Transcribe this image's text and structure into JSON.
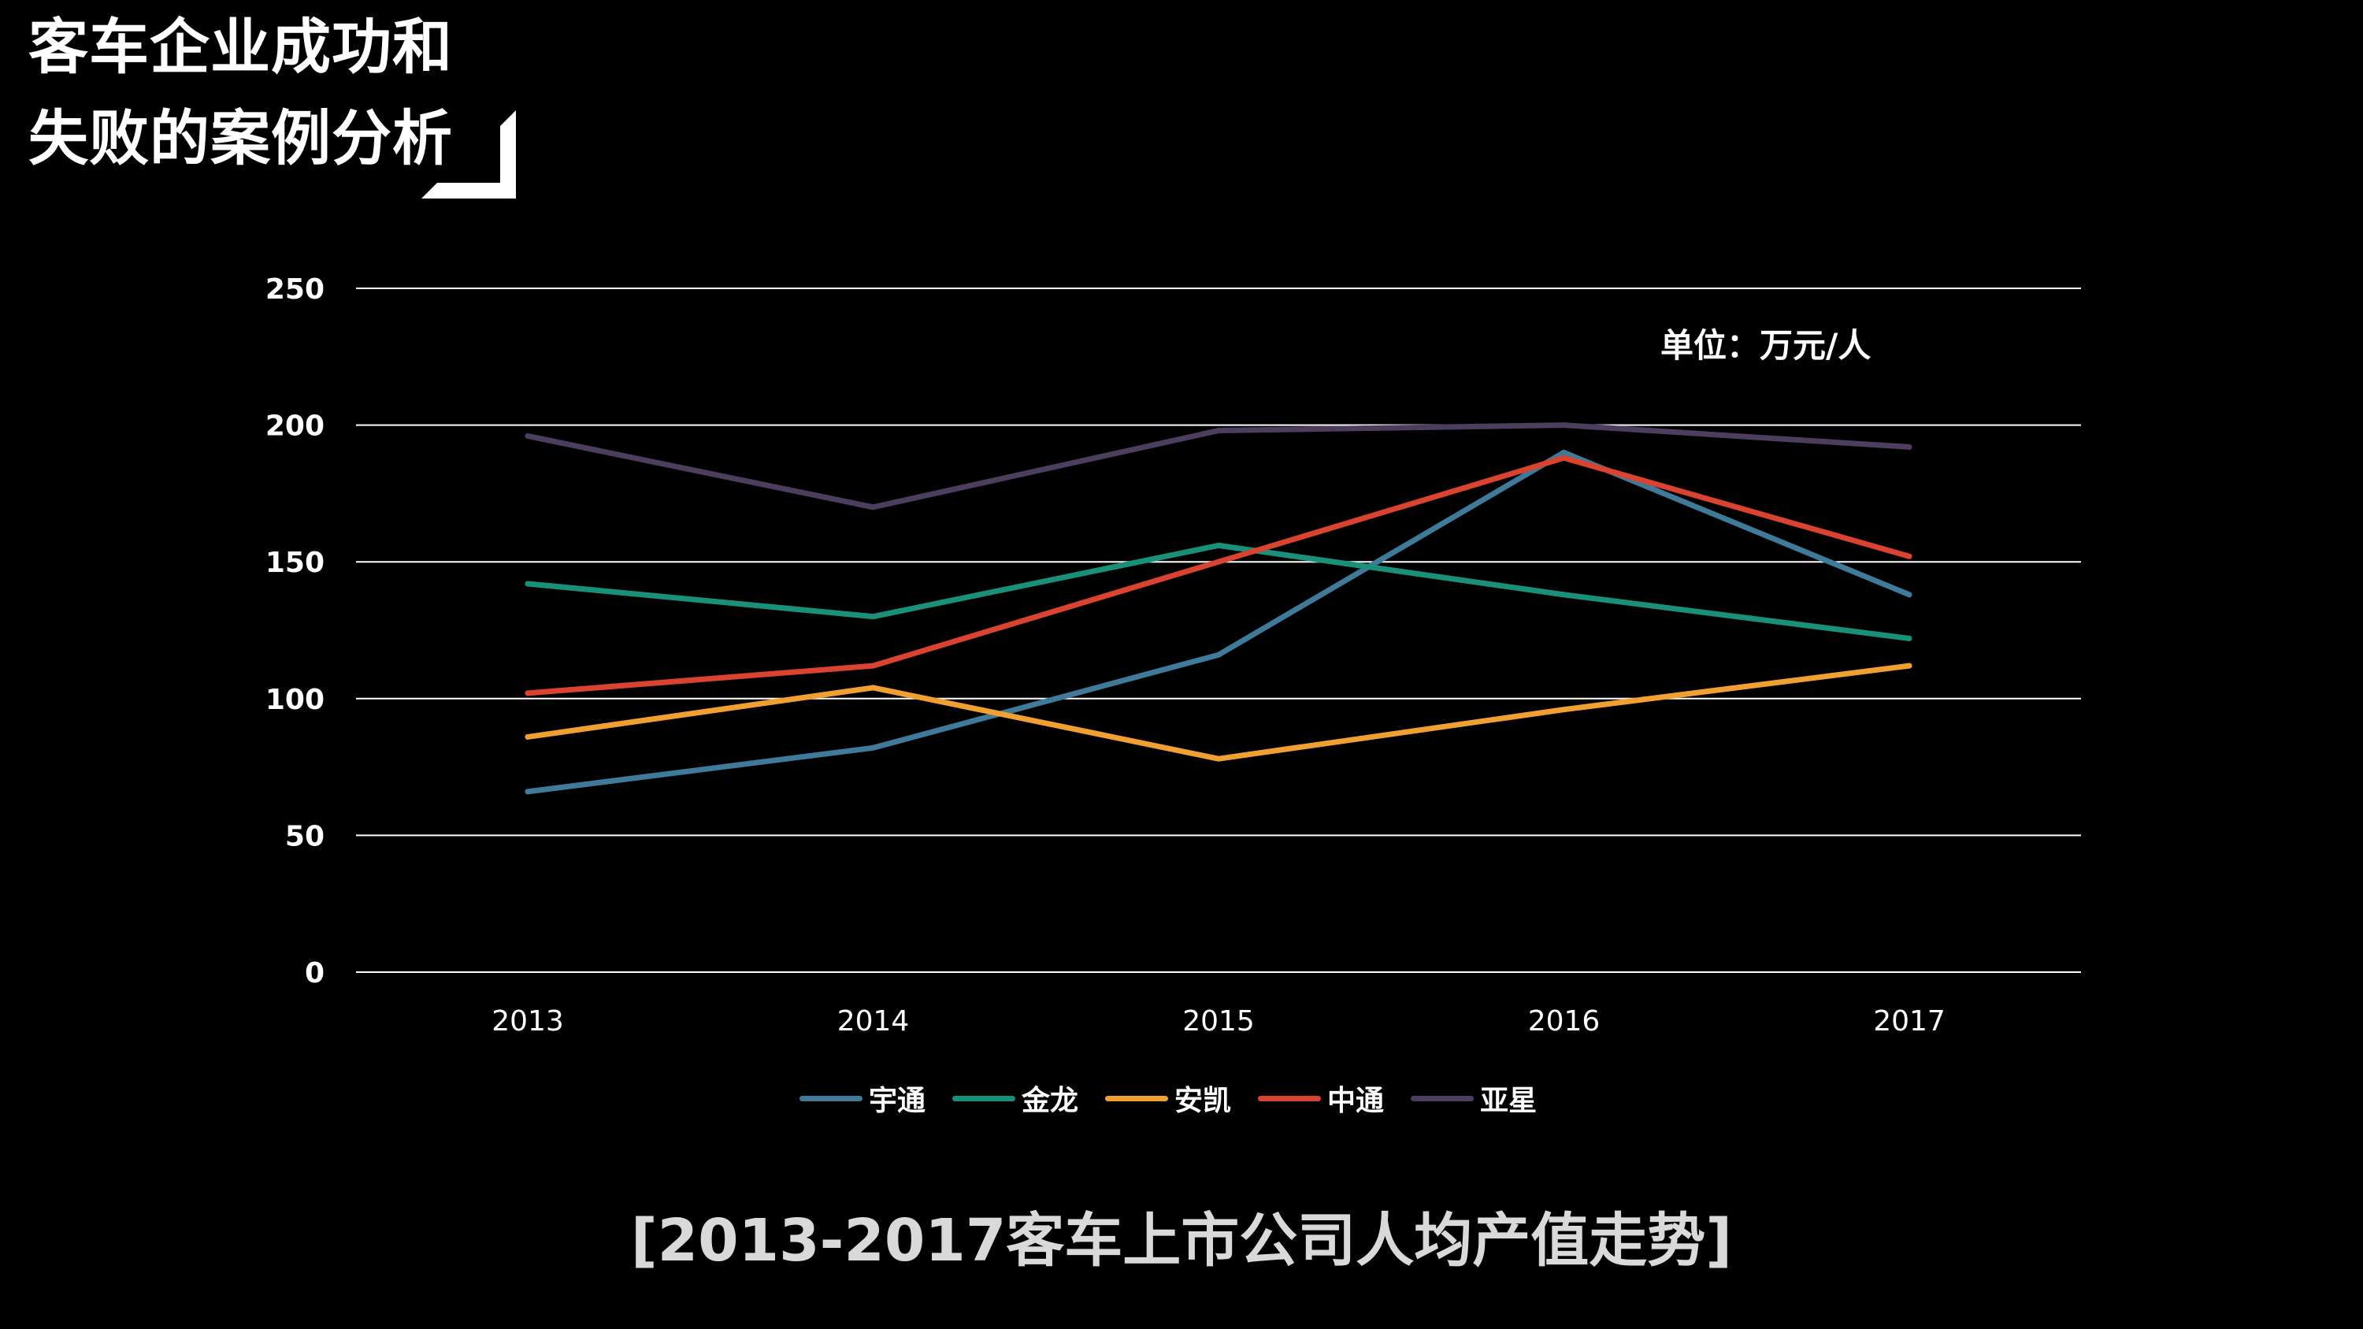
{
  "slide": {
    "title_line1": "客车企业成功和",
    "title_line2": "失败的案例分析",
    "caption": "[2013-2017客车上市公司人均产值走势]"
  },
  "colors": {
    "background": "#000000",
    "gridline": "#ffffff",
    "caption": "#d9d9d9"
  },
  "chart_data": {
    "type": "line",
    "unit_label": "单位：万元/人",
    "x": [
      "2013",
      "2014",
      "2015",
      "2016",
      "2017"
    ],
    "ylim": [
      0,
      250
    ],
    "yticks": [
      0,
      50,
      100,
      150,
      200,
      250
    ],
    "grid": true,
    "legend_position": "bottom",
    "series": [
      {
        "name": "宇通",
        "color": "#3f7a9a",
        "values": [
          66,
          82,
          116,
          190,
          138
        ]
      },
      {
        "name": "金龙",
        "color": "#199178",
        "values": [
          142,
          130,
          156,
          138,
          122
        ]
      },
      {
        "name": "安凯",
        "color": "#f0a030",
        "values": [
          86,
          104,
          78,
          96,
          112
        ]
      },
      {
        "name": "中通",
        "color": "#d9432f",
        "values": [
          102,
          112,
          150,
          188,
          152
        ]
      },
      {
        "name": "亚星",
        "color": "#4e3d5e",
        "values": [
          196,
          170,
          198,
          200,
          192
        ]
      }
    ]
  }
}
